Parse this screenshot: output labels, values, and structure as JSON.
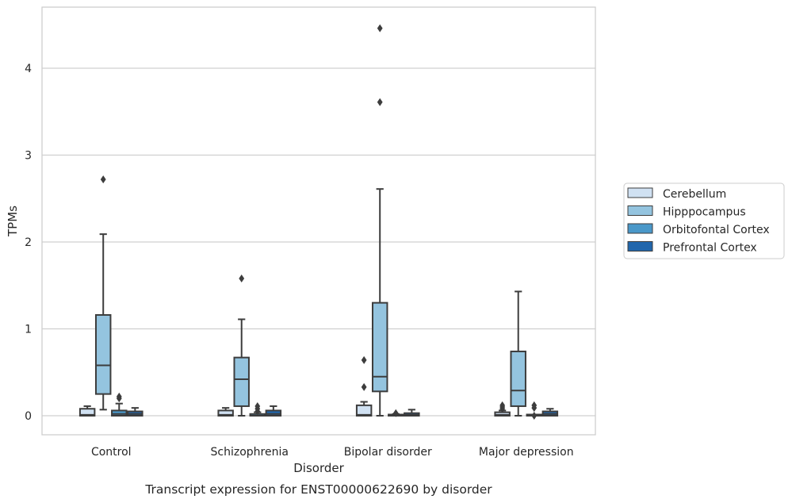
{
  "chart_data": {
    "type": "box",
    "caption": "Transcript expression for ENST00000622690 by disorder",
    "xlabel": "Disorder",
    "ylabel": "TPMs",
    "ylim": [
      -0.22,
      4.7
    ],
    "yticks": [
      0,
      1,
      2,
      3,
      4
    ],
    "grid": "horizontal",
    "legend_position": "right",
    "categories": [
      "Control",
      "Schizophrenia",
      "Bipolar disorder",
      "Major depression"
    ],
    "series": [
      {
        "name": "Cerebellum",
        "color": "#d0e1f2",
        "boxes": [
          {
            "whislo": 0,
            "q1": 0,
            "med": 0.01,
            "q3": 0.08,
            "whishi": 0.11,
            "fliers": []
          },
          {
            "whislo": 0,
            "q1": 0,
            "med": 0.01,
            "q3": 0.06,
            "whishi": 0.09,
            "fliers": []
          },
          {
            "whislo": 0,
            "q1": 0,
            "med": 0.01,
            "q3": 0.12,
            "whishi": 0.16,
            "fliers": [
              0.33,
              0.64
            ]
          },
          {
            "whislo": 0,
            "q1": 0,
            "med": 0.01,
            "q3": 0.04,
            "whishi": 0.06,
            "fliers": [
              0.08,
              0.1,
              0.12
            ]
          }
        ]
      },
      {
        "name": "Hipppocampus",
        "color": "#94c4df",
        "boxes": [
          {
            "whislo": 0.07,
            "q1": 0.25,
            "med": 0.58,
            "q3": 1.16,
            "whishi": 2.09,
            "fliers": [
              2.72
            ]
          },
          {
            "whislo": 0,
            "q1": 0.11,
            "med": 0.42,
            "q3": 0.67,
            "whishi": 1.11,
            "fliers": [
              1.58
            ]
          },
          {
            "whislo": 0,
            "q1": 0.28,
            "med": 0.45,
            "q3": 1.3,
            "whishi": 2.61,
            "fliers": [
              3.61,
              4.46
            ]
          },
          {
            "whislo": 0,
            "q1": 0.11,
            "med": 0.29,
            "q3": 0.74,
            "whishi": 1.43,
            "fliers": []
          }
        ]
      },
      {
        "name": "Orbitofontal Cortex",
        "color": "#4a98c9",
        "boxes": [
          {
            "whislo": 0,
            "q1": 0,
            "med": 0.02,
            "q3": 0.06,
            "whishi": 0.14,
            "fliers": [
              0.2,
              0.22
            ]
          },
          {
            "whislo": 0,
            "q1": 0,
            "med": 0.0,
            "q3": 0.02,
            "whishi": 0.04,
            "fliers": [
              0.05,
              0.08,
              0.11
            ]
          },
          {
            "whislo": 0,
            "q1": 0,
            "med": 0.0,
            "q3": 0.01,
            "whishi": 0.02,
            "fliers": [
              0.03
            ]
          },
          {
            "whislo": 0,
            "q1": 0,
            "med": 0.0,
            "q3": 0.0,
            "whishi": 0.0,
            "fliers": [
              0.0,
              0.09,
              0.12
            ]
          }
        ]
      },
      {
        "name": "Prefrontal Cortex",
        "color": "#2166ac",
        "boxes": [
          {
            "whislo": 0,
            "q1": 0,
            "med": 0.02,
            "q3": 0.05,
            "whishi": 0.09,
            "fliers": []
          },
          {
            "whislo": 0,
            "q1": 0,
            "med": 0.02,
            "q3": 0.06,
            "whishi": 0.11,
            "fliers": []
          },
          {
            "whislo": 0,
            "q1": 0,
            "med": 0.01,
            "q3": 0.03,
            "whishi": 0.07,
            "fliers": []
          },
          {
            "whislo": 0,
            "q1": 0,
            "med": 0.02,
            "q3": 0.05,
            "whishi": 0.08,
            "fliers": []
          }
        ]
      }
    ]
  }
}
